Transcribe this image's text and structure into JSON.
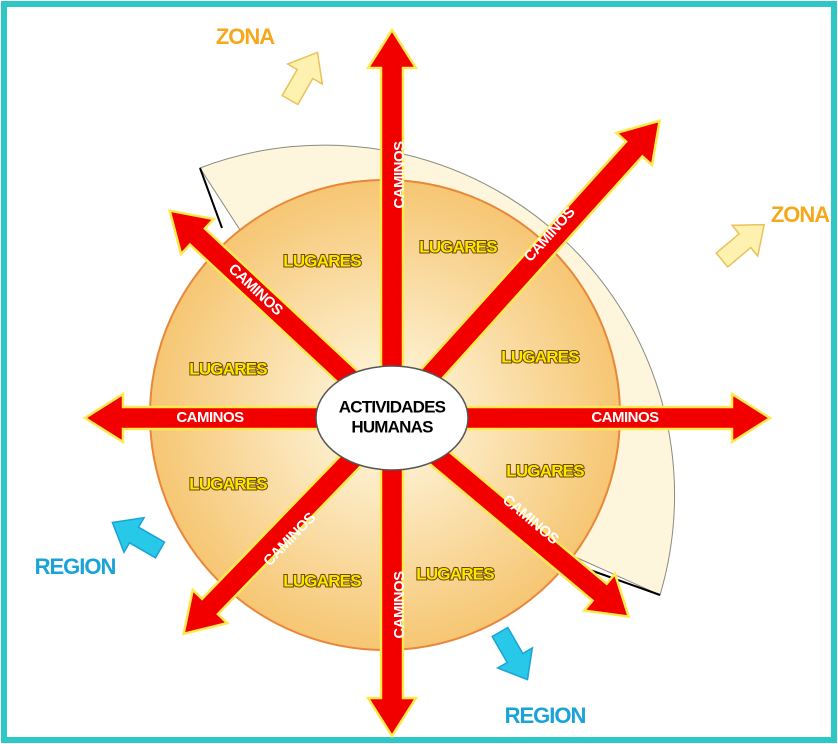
{
  "center": [
    "ACTIVIDADES",
    "HUMANAS"
  ],
  "caminos": [
    "CAMINOS",
    "CAMINOS",
    "CAMINOS",
    "CAMINOS",
    "CAMINOS",
    "CAMINOS",
    "CAMINOS",
    "CAMINOS"
  ],
  "lugares": [
    "LUGARES",
    "LUGARES",
    "LUGARES",
    "LUGARES",
    "LUGARES",
    "LUGARES",
    "LUGARES",
    "LUGARES"
  ],
  "zona": [
    "ZONA",
    "ZONA"
  ],
  "region": [
    "REGION",
    "REGION"
  ]
}
